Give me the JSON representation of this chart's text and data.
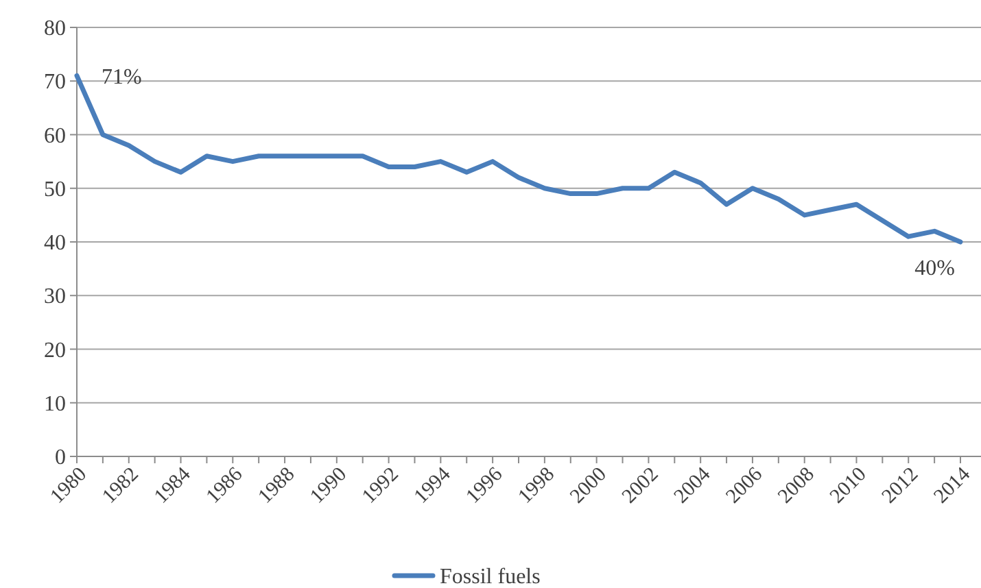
{
  "chart_data": {
    "type": "line",
    "categories": [
      "1980",
      null,
      "1982",
      null,
      "1984",
      null,
      "1986",
      null,
      "1988",
      null,
      "1990",
      null,
      "1992",
      null,
      "1994",
      null,
      "1996",
      null,
      "1998",
      null,
      "2000",
      null,
      "2002",
      null,
      "2004",
      null,
      "2006",
      null,
      "2008",
      null,
      "2010",
      null,
      "2012",
      null,
      "2014"
    ],
    "series": [
      {
        "name": "Fossil fuels",
        "color": "#4a7ebb",
        "values": [
          71,
          60,
          58,
          55,
          53,
          56,
          55,
          56,
          56,
          56,
          56,
          56,
          54,
          54,
          55,
          53,
          55,
          52,
          50,
          49,
          49,
          50,
          50,
          53,
          51,
          47,
          50,
          48,
          45,
          46,
          47,
          44,
          41,
          42,
          40
        ]
      }
    ],
    "ylim": [
      0,
      80
    ],
    "yticks": [
      0,
      10,
      20,
      30,
      40,
      50,
      60,
      70,
      80
    ],
    "grid": "y",
    "legend": "bottom",
    "marker": "none",
    "line_style": "solid",
    "annotations": [
      {
        "text": "71%",
        "x": "1980",
        "y": 71
      },
      {
        "text": "40%",
        "x": "2014",
        "y": 40
      }
    ]
  }
}
